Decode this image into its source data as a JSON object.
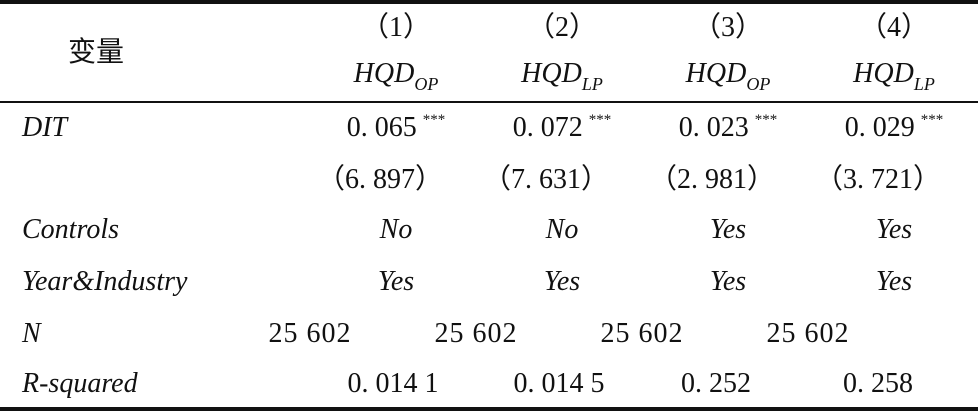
{
  "header": {
    "variable_label": "变量",
    "columns": [
      {
        "num": "（1）",
        "dep": "HQD",
        "sub": "OP"
      },
      {
        "num": "（2）",
        "dep": "HQD",
        "sub": "LP"
      },
      {
        "num": "（3）",
        "dep": "HQD",
        "sub": "OP"
      },
      {
        "num": "（4）",
        "dep": "HQD",
        "sub": "LP"
      }
    ]
  },
  "rows": {
    "dit": {
      "label": "DIT",
      "coef": [
        "0. 065",
        "0. 072",
        "0. 023",
        "0. 029"
      ],
      "stars": [
        "***",
        "***",
        "***",
        "***"
      ],
      "tstat": [
        "（6. 897）",
        "（7. 631）",
        "（2. 981）",
        "（3. 721）"
      ]
    },
    "controls": {
      "label": "Controls",
      "values": [
        "No",
        "No",
        "Yes",
        "Yes"
      ]
    },
    "year_industry": {
      "label": "Year&Industry",
      "values": [
        "Yes",
        "Yes",
        "Yes",
        "Yes"
      ]
    },
    "n": {
      "label": "N",
      "values": [
        "25 602",
        "25 602",
        "25 602",
        "25 602"
      ]
    },
    "r_squared": {
      "label": "R-squared",
      "values": [
        "0. 014 1",
        "0. 014 5",
        "0. 252",
        "0. 258"
      ]
    }
  }
}
